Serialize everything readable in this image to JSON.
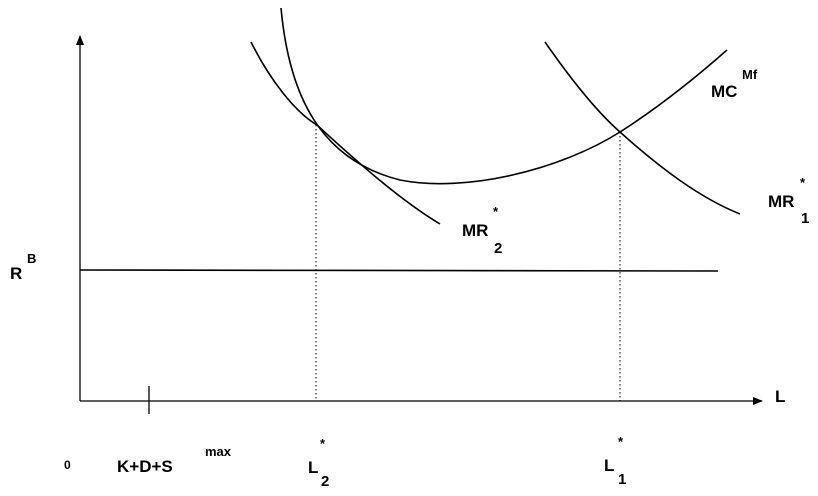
{
  "axes": {
    "y_label": "R",
    "y_label_sup": "B",
    "x_label": "L",
    "origin_label": "0"
  },
  "x_ticks": {
    "capacity_label": "K+D+S",
    "capacity_sup": "max",
    "l2_label": "L",
    "l2_star": "*",
    "l2_sub": "2",
    "l1_label": "L",
    "l1_star": "*",
    "l1_sub": "1"
  },
  "curves": {
    "mc_label": "MC",
    "mc_sup": "Mf",
    "mr1_label": "MR",
    "mr1_star": "*",
    "mr1_sub": "1",
    "mr2_label": "MR",
    "mr2_star": "*",
    "mr2_sub": "2"
  },
  "colors": {
    "ink": "#000000",
    "background": "#ffffff"
  }
}
